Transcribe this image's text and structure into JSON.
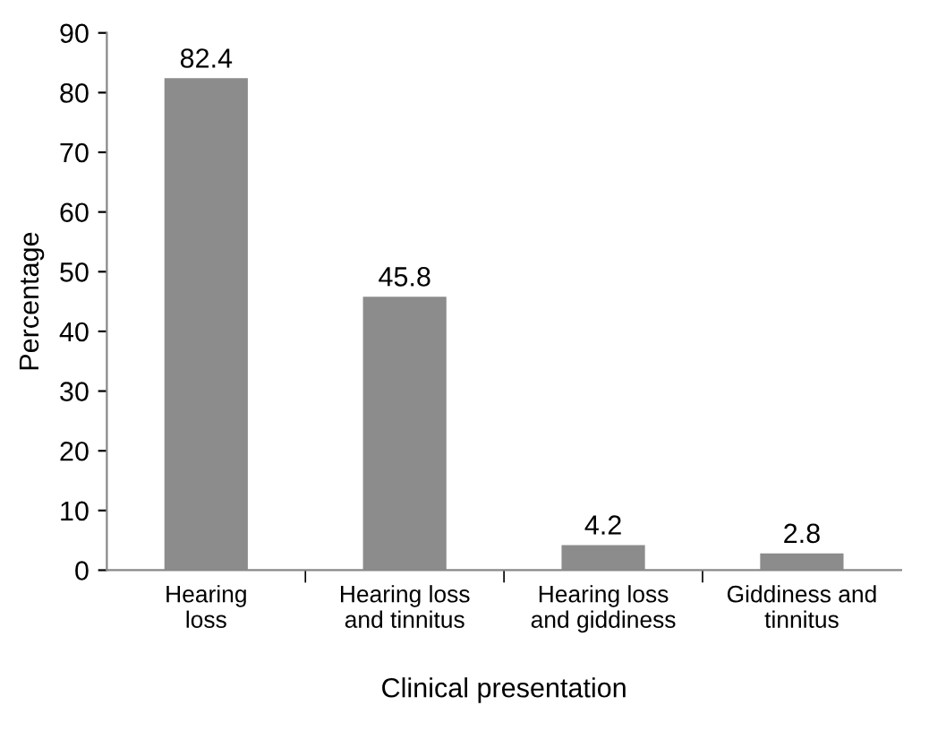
{
  "chart_data": {
    "type": "bar",
    "xlabel": "Clinical presentation",
    "ylabel": "Percentage",
    "categories": [
      "Hearing\nloss",
      "Hearing loss\nand tinnitus",
      "Hearing loss\nand giddiness",
      "Giddiness and\ntinnitus"
    ],
    "values": [
      82.4,
      45.8,
      4.2,
      2.8
    ],
    "color": "#8c8c8c",
    "ylim": [
      0,
      90
    ],
    "yticks": [
      0,
      10,
      20,
      30,
      40,
      50,
      60,
      70,
      80,
      90
    ],
    "grid": false,
    "data_labels": true
  }
}
